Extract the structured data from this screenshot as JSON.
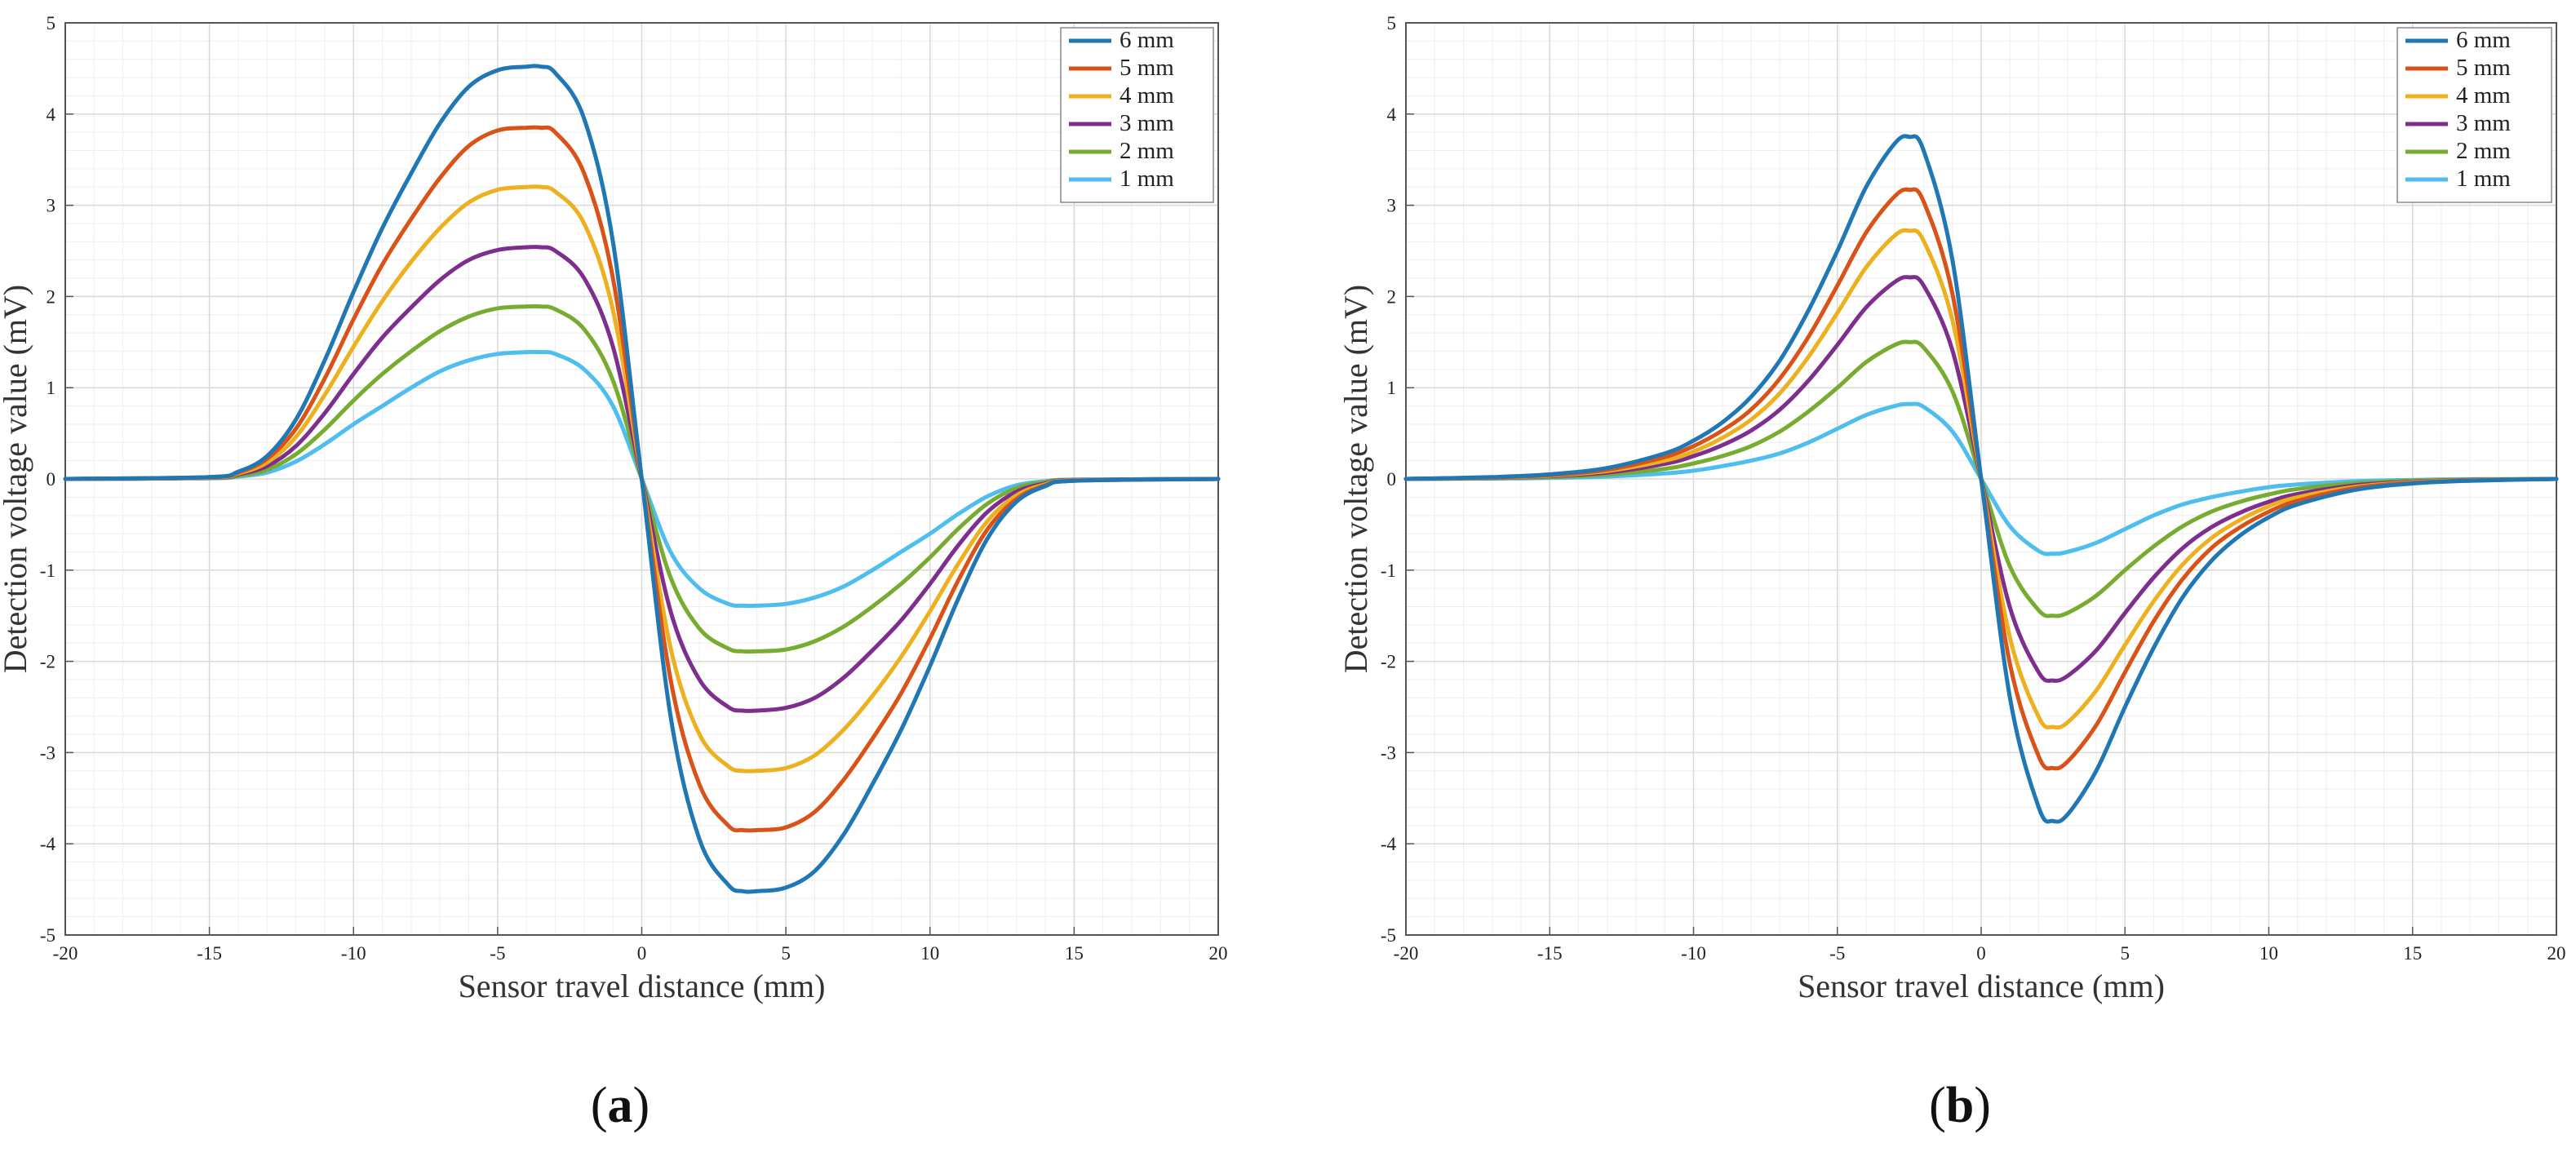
{
  "chart_data": [
    {
      "type": "line",
      "panel_label": "a",
      "xlabel": "Sensor travel distance (mm)",
      "ylabel": "Detection voltage value (mV)",
      "xlim": [
        -20,
        20
      ],
      "ylim": [
        -5,
        5
      ],
      "xticks": [
        -20,
        -15,
        -10,
        -5,
        0,
        5,
        10,
        15,
        20
      ],
      "yticks": [
        -5,
        -4,
        -3,
        -2,
        -1,
        0,
        1,
        2,
        3,
        4,
        5
      ],
      "grid": true,
      "legend_position": "top-right",
      "x": [
        -20,
        -15,
        -14,
        -13,
        -12,
        -11,
        -10,
        -9,
        -8,
        -7,
        -6,
        -5,
        -4,
        -3.5,
        -3,
        -2,
        -1,
        0,
        1,
        2,
        3,
        3.5,
        4,
        5,
        6,
        7,
        8,
        9,
        10,
        11,
        12,
        13,
        14,
        15,
        20
      ],
      "series": [
        {
          "name": "6 mm",
          "color": "#1f77b4",
          "values": [
            0,
            0.02,
            0.08,
            0.25,
            0.65,
            1.3,
            2.05,
            2.75,
            3.35,
            3.9,
            4.3,
            4.48,
            4.52,
            4.52,
            4.45,
            3.95,
            2.6,
            0,
            -2.6,
            -3.95,
            -4.45,
            -4.52,
            -4.52,
            -4.48,
            -4.3,
            -3.9,
            -3.35,
            -2.75,
            -2.05,
            -1.3,
            -0.65,
            -0.25,
            -0.08,
            -0.02,
            0
          ]
        },
        {
          "name": "5 mm",
          "color": "#d95319",
          "values": [
            0,
            0.02,
            0.07,
            0.22,
            0.55,
            1.1,
            1.75,
            2.35,
            2.85,
            3.3,
            3.65,
            3.82,
            3.85,
            3.85,
            3.8,
            3.35,
            2.2,
            0,
            -2.2,
            -3.35,
            -3.8,
            -3.85,
            -3.85,
            -3.82,
            -3.65,
            -3.3,
            -2.85,
            -2.35,
            -1.75,
            -1.1,
            -0.55,
            -0.22,
            -0.07,
            -0.02,
            0
          ]
        },
        {
          "name": "4 mm",
          "color": "#edb120",
          "values": [
            0,
            0.015,
            0.06,
            0.18,
            0.46,
            0.92,
            1.45,
            1.95,
            2.38,
            2.75,
            3.03,
            3.17,
            3.2,
            3.2,
            3.15,
            2.8,
            1.85,
            0,
            -1.85,
            -2.8,
            -3.15,
            -3.2,
            -3.2,
            -3.17,
            -3.03,
            -2.75,
            -2.38,
            -1.95,
            -1.45,
            -0.92,
            -0.46,
            -0.18,
            -0.06,
            -0.015,
            0
          ]
        },
        {
          "name": "3 mm",
          "color": "#7e2f8e",
          "values": [
            0,
            0.012,
            0.05,
            0.14,
            0.36,
            0.72,
            1.15,
            1.55,
            1.88,
            2.18,
            2.4,
            2.51,
            2.54,
            2.54,
            2.5,
            2.2,
            1.45,
            0,
            -1.45,
            -2.2,
            -2.5,
            -2.54,
            -2.54,
            -2.51,
            -2.4,
            -2.18,
            -1.88,
            -1.55,
            -1.15,
            -0.72,
            -0.36,
            -0.14,
            -0.05,
            -0.012,
            0
          ]
        },
        {
          "name": "2 mm",
          "color": "#77ac30",
          "values": [
            0,
            0.01,
            0.035,
            0.1,
            0.27,
            0.54,
            0.86,
            1.15,
            1.4,
            1.62,
            1.78,
            1.87,
            1.89,
            1.89,
            1.86,
            1.64,
            1.08,
            0,
            -1.08,
            -1.64,
            -1.86,
            -1.89,
            -1.89,
            -1.87,
            -1.78,
            -1.62,
            -1.4,
            -1.15,
            -0.86,
            -0.54,
            -0.27,
            -0.1,
            -0.035,
            -0.01,
            0
          ]
        },
        {
          "name": "1 mm",
          "color": "#4dbeee",
          "values": [
            0,
            0.008,
            0.025,
            0.07,
            0.19,
            0.38,
            0.6,
            0.8,
            1.0,
            1.18,
            1.3,
            1.37,
            1.39,
            1.39,
            1.37,
            1.2,
            0.8,
            0,
            -0.8,
            -1.2,
            -1.37,
            -1.39,
            -1.39,
            -1.37,
            -1.3,
            -1.18,
            -1.0,
            -0.8,
            -0.6,
            -0.38,
            -0.19,
            -0.07,
            -0.025,
            -0.008,
            0
          ]
        }
      ]
    },
    {
      "type": "line",
      "panel_label": "b",
      "xlabel": "Sensor travel distance (mm)",
      "ylabel": "Detection voltage value (mV)",
      "xlim": [
        -20,
        20
      ],
      "ylim": [
        -5,
        5
      ],
      "xticks": [
        -20,
        -15,
        -10,
        -5,
        0,
        5,
        10,
        15,
        20
      ],
      "yticks": [
        -5,
        -4,
        -3,
        -2,
        -1,
        0,
        1,
        2,
        3,
        4,
        5
      ],
      "grid": true,
      "legend_position": "top-right",
      "x": [
        -20,
        -17,
        -15,
        -13,
        -11,
        -10,
        -9,
        -8,
        -7,
        -6,
        -5,
        -4,
        -3,
        -2.5,
        -2,
        -1,
        0,
        1,
        2,
        2.5,
        3,
        4,
        5,
        6,
        7,
        8,
        9,
        10,
        11,
        13,
        15,
        17,
        20
      ],
      "series": [
        {
          "name": "6 mm",
          "color": "#1f77b4",
          "values": [
            0,
            0.02,
            0.05,
            0.12,
            0.28,
            0.42,
            0.62,
            0.9,
            1.3,
            1.85,
            2.5,
            3.2,
            3.68,
            3.75,
            3.6,
            2.4,
            0,
            -2.4,
            -3.6,
            -3.75,
            -3.68,
            -3.2,
            -2.5,
            -1.85,
            -1.3,
            -0.9,
            -0.62,
            -0.42,
            -0.28,
            -0.12,
            -0.05,
            -0.02,
            0
          ]
        },
        {
          "name": "5 mm",
          "color": "#d95319",
          "values": [
            0,
            0.017,
            0.042,
            0.1,
            0.24,
            0.36,
            0.53,
            0.76,
            1.1,
            1.56,
            2.12,
            2.7,
            3.1,
            3.17,
            3.04,
            2.03,
            0,
            -2.03,
            -3.04,
            -3.17,
            -3.1,
            -2.7,
            -2.12,
            -1.56,
            -1.1,
            -0.76,
            -0.53,
            -0.36,
            -0.24,
            -0.1,
            -0.042,
            -0.017,
            0
          ]
        },
        {
          "name": "4 mm",
          "color": "#edb120",
          "values": [
            0,
            0.014,
            0.036,
            0.087,
            0.2,
            0.3,
            0.45,
            0.65,
            0.94,
            1.34,
            1.82,
            2.32,
            2.67,
            2.72,
            2.61,
            1.74,
            0,
            -1.74,
            -2.61,
            -2.72,
            -2.67,
            -2.32,
            -1.82,
            -1.34,
            -0.94,
            -0.65,
            -0.45,
            -0.3,
            -0.2,
            -0.087,
            -0.036,
            -0.014,
            0
          ]
        },
        {
          "name": "3 mm",
          "color": "#7e2f8e",
          "values": [
            0,
            0.012,
            0.03,
            0.07,
            0.165,
            0.25,
            0.37,
            0.53,
            0.76,
            1.08,
            1.47,
            1.88,
            2.16,
            2.21,
            2.12,
            1.41,
            0,
            -1.41,
            -2.12,
            -2.21,
            -2.16,
            -1.88,
            -1.47,
            -1.08,
            -0.76,
            -0.53,
            -0.37,
            -0.25,
            -0.165,
            -0.07,
            -0.03,
            -0.012,
            0
          ]
        },
        {
          "name": "2 mm",
          "color": "#77ac30",
          "values": [
            0,
            0.008,
            0.02,
            0.048,
            0.11,
            0.17,
            0.25,
            0.36,
            0.52,
            0.74,
            1.0,
            1.28,
            1.47,
            1.5,
            1.44,
            0.96,
            0,
            -0.96,
            -1.44,
            -1.5,
            -1.47,
            -1.28,
            -1.0,
            -0.74,
            -0.52,
            -0.36,
            -0.25,
            -0.17,
            -0.11,
            -0.048,
            -0.02,
            -0.008,
            0
          ]
        },
        {
          "name": "1 mm",
          "color": "#4dbeee",
          "values": [
            0,
            0.004,
            0.011,
            0.026,
            0.06,
            0.09,
            0.14,
            0.2,
            0.28,
            0.4,
            0.55,
            0.7,
            0.8,
            0.82,
            0.79,
            0.52,
            0,
            -0.52,
            -0.79,
            -0.82,
            -0.8,
            -0.7,
            -0.55,
            -0.4,
            -0.28,
            -0.2,
            -0.14,
            -0.09,
            -0.06,
            -0.026,
            -0.011,
            -0.004,
            0
          ]
        }
      ]
    }
  ]
}
